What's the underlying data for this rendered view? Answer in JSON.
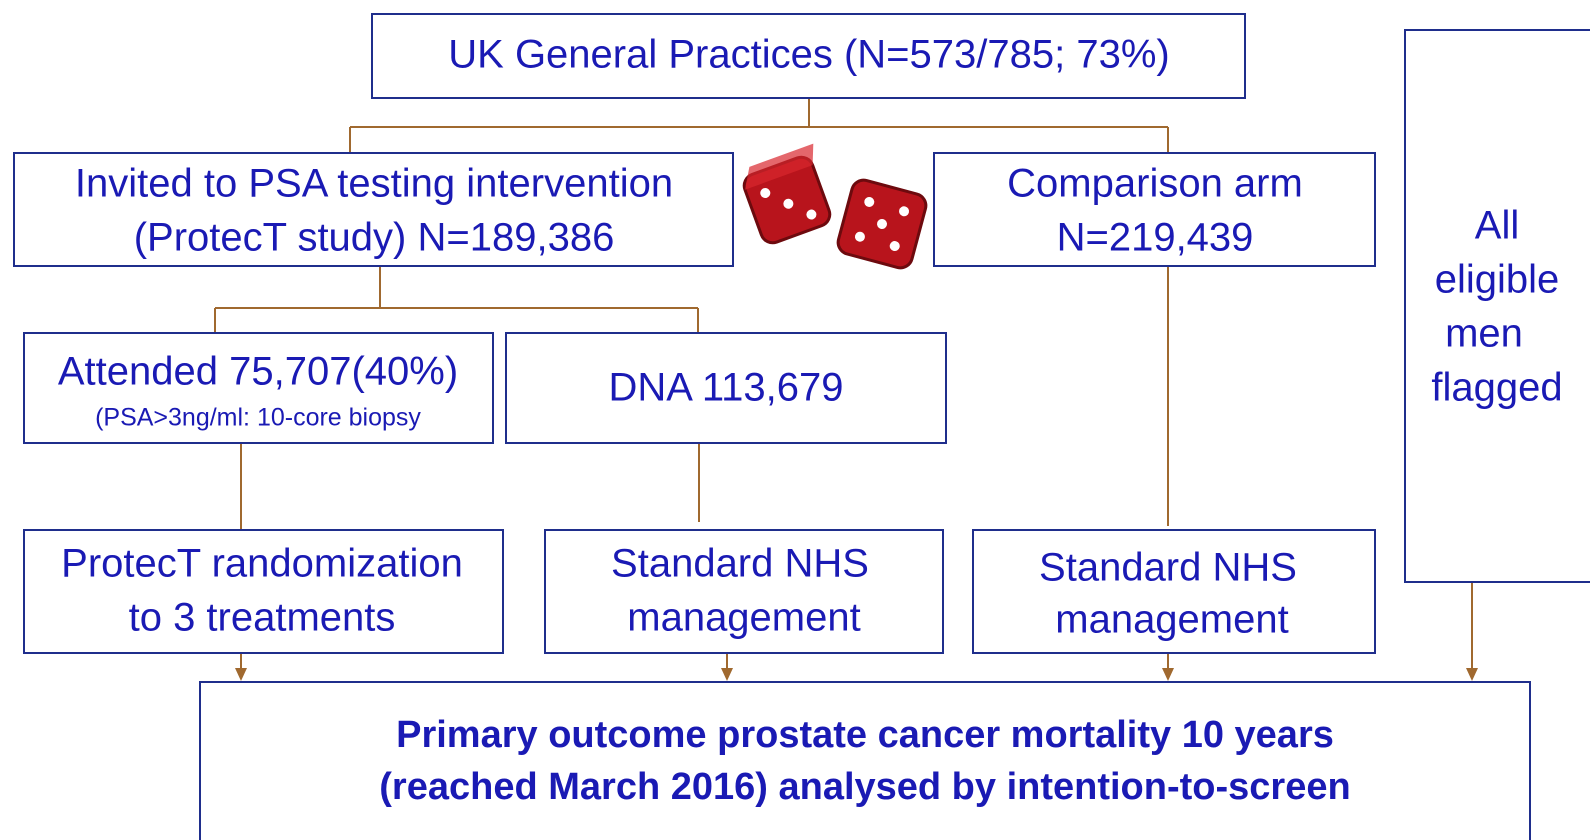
{
  "nodes": [
    {
      "lines": [
        "UK General Practices (N=573/785; 73%)"
      ]
    },
    {
      "lines": [
        "Invited to PSA testing intervention",
        "(ProtecT study) N=189,386"
      ]
    },
    {
      "lines": [
        "Comparison arm",
        "N=219,439"
      ]
    },
    {
      "lines": [
        "All",
        "eligible",
        "men",
        "flagged"
      ]
    },
    {
      "lines": [
        "Attended 75,707(40%)",
        "(PSA>3ng/ml: 10-core biopsy"
      ]
    },
    {
      "lines": [
        "DNA 113,679"
      ]
    },
    {
      "lines": [
        "ProtecT randomization",
        "to 3 treatments"
      ]
    },
    {
      "lines": [
        "Standard NHS",
        "management"
      ]
    },
    {
      "lines": [
        "Standard NHS",
        "management"
      ]
    },
    {
      "lines": [
        "Primary outcome prostate cancer mortality 10 years",
        "(reached March 2016) analysed by intention-to-screen"
      ]
    }
  ]
}
